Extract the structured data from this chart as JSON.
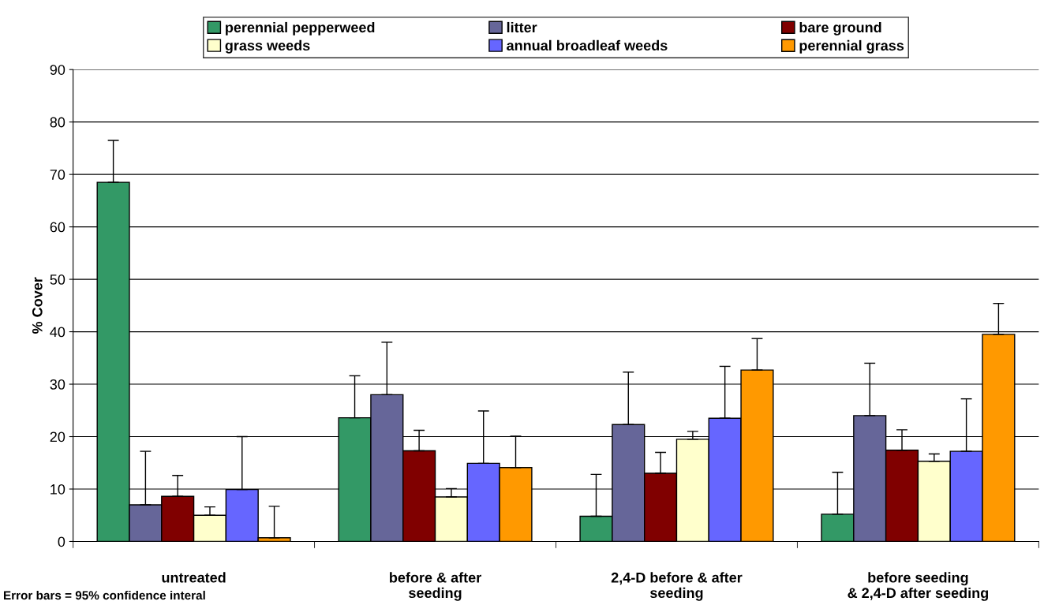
{
  "chart_data": {
    "type": "bar",
    "ylabel": "% Cover",
    "categories": [
      "untreated",
      "before & after\nseeding",
      "2,4-D before & after\nseeding",
      "before seeding\n& 2,4-D after seeding"
    ],
    "series": [
      {
        "name": "perennial pepperweed",
        "color": "#339966",
        "values": [
          68.5,
          23.6,
          4.8,
          5.2
        ],
        "errors": [
          [
            68.5,
            76.5
          ],
          [
            23.6,
            31.6
          ],
          [
            4.8,
            12.8
          ],
          [
            5.2,
            13.2
          ]
        ]
      },
      {
        "name": "litter",
        "color": "#666699",
        "values": [
          7.0,
          28.0,
          22.3,
          24.0
        ],
        "errors": [
          [
            7.0,
            17.2
          ],
          [
            28.0,
            38.0
          ],
          [
            22.3,
            32.3
          ],
          [
            24.0,
            34.0
          ]
        ]
      },
      {
        "name": "bare ground",
        "color": "#800000",
        "values": [
          8.6,
          17.3,
          13.0,
          17.4
        ],
        "errors": [
          [
            8.6,
            12.6
          ],
          [
            17.3,
            21.2
          ],
          [
            13.0,
            17.0
          ],
          [
            17.4,
            21.3
          ]
        ]
      },
      {
        "name": "grass weeds",
        "color": "#ffffcc",
        "values": [
          5.0,
          8.5,
          19.5,
          15.3
        ],
        "errors": [
          [
            5.0,
            6.6
          ],
          [
            8.5,
            10.1
          ],
          [
            19.5,
            21.0
          ],
          [
            15.3,
            16.7
          ]
        ]
      },
      {
        "name": "annual broadleaf weeds",
        "color": "#6666ff",
        "values": [
          9.9,
          14.9,
          23.5,
          17.2
        ],
        "errors": [
          [
            9.9,
            20.0
          ],
          [
            14.9,
            24.9
          ],
          [
            23.5,
            33.4
          ],
          [
            17.2,
            27.2
          ]
        ]
      },
      {
        "name": "perennial grass",
        "color": "#ff9900",
        "values": [
          0.7,
          14.1,
          32.7,
          39.5
        ],
        "errors": [
          [
            0.7,
            6.7
          ],
          [
            14.1,
            20.1
          ],
          [
            32.7,
            38.7
          ],
          [
            39.5,
            45.4
          ]
        ]
      }
    ],
    "ylim": [
      0,
      90
    ],
    "yticks": [
      0,
      10,
      20,
      30,
      40,
      50,
      60,
      70,
      80,
      90
    ],
    "grid": "y",
    "legend": "top",
    "annotations": [
      "Error bars = 95% confidence interal"
    ]
  }
}
